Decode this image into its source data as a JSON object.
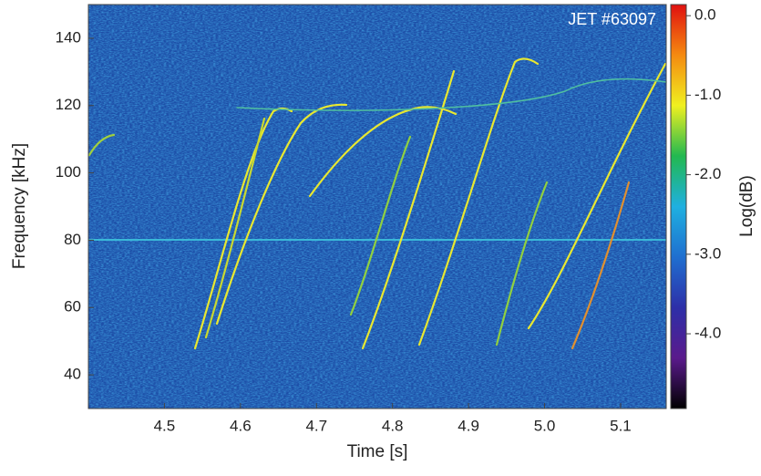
{
  "chart_data": {
    "type": "spectrogram",
    "annotation": "JET #63097",
    "x_label": "Time [s]",
    "y_label": "Frequency [kHz]",
    "colorbar_label": "Log(dB)",
    "xlim": [
      4.4,
      5.16
    ],
    "xticks": [
      4.5,
      4.6,
      4.7,
      4.8,
      4.9,
      {
        "value": 5.0,
        "label": "5.0"
      },
      5.1
    ],
    "ylim": [
      30,
      150
    ],
    "yticks": [
      40,
      60,
      80,
      100,
      120,
      140
    ],
    "clim": [
      -4.94,
      0.14
    ],
    "cticks": [
      {
        "value": 0,
        "label": "0.0"
      },
      {
        "value": -1,
        "label": "-1.0"
      },
      {
        "value": -2,
        "label": "-2.0"
      },
      {
        "value": -3,
        "label": "-3.0"
      },
      {
        "value": -4,
        "label": "-4.0"
      }
    ],
    "colormap": [
      "#000000",
      "#5a1a8c",
      "#2d2fa8",
      "#1f6fd0",
      "#1fb0e0",
      "#22b850",
      "#f0f020",
      "#f58a10",
      "#e01010"
    ]
  }
}
